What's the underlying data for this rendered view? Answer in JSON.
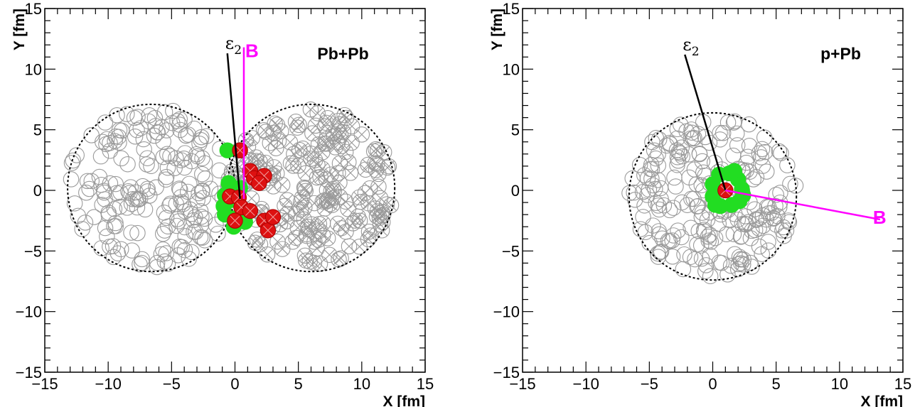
{
  "chart_data": [
    {
      "type": "scatter",
      "system_label": "Pb+Pb",
      "xlabel": "X [fm]",
      "ylabel": "Y [fm]",
      "xlim": [
        -15,
        15
      ],
      "ylim": [
        -15,
        15
      ],
      "ticks": [
        -15,
        -10,
        -5,
        0,
        5,
        10,
        15
      ],
      "tick_labels": [
        "−15",
        "−10",
        "−5",
        "0",
        "5",
        "10",
        "15"
      ],
      "grid": false,
      "nucleus_outlines": [
        {
          "center": [
            -6.6,
            0.2
          ],
          "radius": 6.6
        },
        {
          "center": [
            6.0,
            0.2
          ],
          "radius": 6.6
        }
      ],
      "vectors": [
        {
          "label": "ε2",
          "subscript": "2",
          "symbol": "ε",
          "color": "#000000",
          "from": [
            0.4,
            -0.7
          ],
          "to": [
            -0.6,
            11.3
          ]
        },
        {
          "label": "B",
          "color": "#ff00ff",
          "from": [
            0.7,
            -0.7
          ],
          "to": [
            0.7,
            11.8
          ]
        }
      ],
      "participants_target": [
        [
          -0.6,
          3.3
        ],
        [
          -0.5,
          0.6
        ],
        [
          -0.8,
          -0.4
        ],
        [
          -0.9,
          -1.3
        ],
        [
          -0.8,
          -2.0
        ],
        [
          -0.1,
          -3.0
        ],
        [
          0.0,
          -2.3
        ],
        [
          0.4,
          0.2
        ],
        [
          -0.3,
          -0.8
        ],
        [
          0.8,
          -2.6
        ]
      ],
      "participants_projectile": [
        [
          0.4,
          3.3
        ],
        [
          1.2,
          1.6
        ],
        [
          1.5,
          1.0
        ],
        [
          2.3,
          1.2
        ],
        [
          1.9,
          0.6
        ],
        [
          -0.4,
          -0.5
        ],
        [
          0.3,
          -0.6
        ],
        [
          0.5,
          -1.4
        ],
        [
          0.0,
          -2.5
        ],
        [
          2.3,
          -2.5
        ],
        [
          2.6,
          -3.3
        ],
        [
          3.0,
          -2.2
        ],
        [
          1.2,
          -1.7
        ]
      ],
      "spectators_count_left": 200,
      "spectators_count_right": 210
    },
    {
      "type": "scatter",
      "system_label": "p+Pb",
      "xlabel": "X [fm]",
      "ylabel": "Y [fm]",
      "xlim": [
        -15,
        15
      ],
      "ylim": [
        -15,
        15
      ],
      "ticks": [
        -15,
        -10,
        -5,
        0,
        5,
        10,
        15
      ],
      "tick_labels": [
        "−15",
        "−10",
        "−5",
        "0",
        "5",
        "10",
        "15"
      ],
      "grid": false,
      "nucleus_outlines": [
        {
          "center": [
            0.0,
            -0.5
          ],
          "radius": 6.6
        },
        {
          "center": [
            1.0,
            0.0
          ],
          "radius": 1.1
        }
      ],
      "vectors": [
        {
          "label": "ε2",
          "subscript": "2",
          "symbol": "ε",
          "color": "#000000",
          "from": [
            1.0,
            0.0
          ],
          "to": [
            -2.2,
            11.2
          ]
        },
        {
          "label": "B",
          "color": "#ff00ff",
          "from": [
            1.0,
            0.0
          ],
          "to": [
            13.2,
            -2.4
          ]
        }
      ],
      "participants_target": [
        [
          0.0,
          0.5
        ],
        [
          0.5,
          1.3
        ],
        [
          1.3,
          1.4
        ],
        [
          2.0,
          0.9
        ],
        [
          2.3,
          0.1
        ],
        [
          2.1,
          -0.9
        ],
        [
          1.5,
          -1.2
        ],
        [
          0.6,
          -1.3
        ],
        [
          0.0,
          -0.5
        ],
        [
          1.7,
          1.6
        ],
        [
          0.2,
          -1.2
        ],
        [
          2.4,
          -0.4
        ]
      ],
      "participants_projectile": [
        [
          1.0,
          0.0
        ]
      ],
      "spectators_count_left": 230
    }
  ],
  "colors": {
    "participant_target": "#22dd22",
    "participant_projectile": "#dd1111",
    "spectator": "#9a9a9a",
    "b_vector": "#ff00ff",
    "eps_vector": "#000000"
  }
}
